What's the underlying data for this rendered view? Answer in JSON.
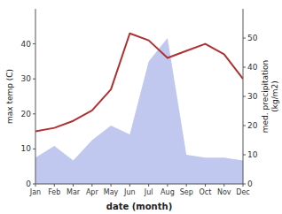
{
  "chart_data": {
    "type": "line",
    "xlabel": "date (month)",
    "ylabel": "max temp (C)",
    "y2label": "med. precipitation\n(kg/m2)",
    "categories": [
      "Jan",
      "Feb",
      "Mar",
      "Apr",
      "May",
      "Jun",
      "Jul",
      "Aug",
      "Sep",
      "Oct",
      "Nov",
      "Dec"
    ],
    "series": [
      {
        "type": "area",
        "axis": "y2",
        "color": "#c0c8f0",
        "values": [
          9,
          13,
          8,
          15,
          20,
          17,
          42,
          50,
          10,
          9,
          9,
          8
        ]
      },
      {
        "type": "line",
        "color": "#b03030",
        "values": [
          15,
          16,
          18,
          21,
          27,
          43,
          41,
          36,
          38,
          40,
          37,
          30
        ]
      }
    ],
    "ylim": [
      0,
      50
    ],
    "yticks": [
      0,
      10,
      20,
      30,
      40
    ],
    "y2lim": [
      0,
      60
    ],
    "y2ticks": [
      0,
      10,
      20,
      30,
      40,
      50
    ]
  }
}
